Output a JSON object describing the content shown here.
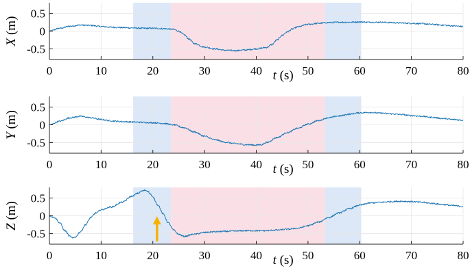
{
  "chart_data": [
    {
      "type": "line",
      "axis_variable": "X",
      "axis_unit": "(m)",
      "xlabel_var": "t",
      "xlabel_unit": "(s)",
      "xlim": [
        0,
        80
      ],
      "ylim": [
        -0.8,
        0.8
      ],
      "xticks": [
        0,
        10,
        20,
        30,
        40,
        50,
        60,
        70,
        80
      ],
      "yticks": [
        -0.5,
        0,
        0.5
      ],
      "ytick_labels": [
        "-0.5",
        "0",
        "0.5"
      ],
      "grid": true,
      "bands": [
        {
          "x0": 16.2,
          "x1": 23.5,
          "color": "#dce8f7"
        },
        {
          "x0": 23.5,
          "x1": 53.3,
          "color": "#fae0e6"
        },
        {
          "x0": 53.3,
          "x1": 60.3,
          "color": "#dce8f7"
        }
      ],
      "series": [
        {
          "color": "#1f77b4",
          "x": [
            0,
            2,
            4,
            6,
            8,
            10,
            12,
            14,
            16,
            18,
            20,
            22,
            24,
            25,
            26,
            27,
            28,
            30,
            32,
            34,
            36,
            38,
            40,
            42,
            43,
            44,
            45,
            46,
            47,
            48,
            50,
            52,
            54,
            56,
            58,
            60,
            62,
            64,
            66,
            68,
            70,
            72,
            74,
            76,
            78,
            80
          ],
          "y": [
            0.0,
            0.08,
            0.14,
            0.17,
            0.16,
            0.13,
            0.11,
            0.1,
            0.09,
            0.08,
            0.08,
            0.07,
            0.05,
            0.0,
            -0.1,
            -0.22,
            -0.35,
            -0.45,
            -0.5,
            -0.54,
            -0.55,
            -0.53,
            -0.5,
            -0.46,
            -0.38,
            -0.25,
            -0.12,
            -0.02,
            0.06,
            0.12,
            0.19,
            0.22,
            0.24,
            0.25,
            0.25,
            0.26,
            0.25,
            0.25,
            0.24,
            0.23,
            0.22,
            0.21,
            0.19,
            0.17,
            0.15,
            0.13
          ]
        }
      ]
    },
    {
      "type": "line",
      "axis_variable": "Y",
      "axis_unit": "(m)",
      "xlabel_var": "t",
      "xlabel_unit": "(s)",
      "xlim": [
        0,
        80
      ],
      "ylim": [
        -0.8,
        0.8
      ],
      "xticks": [
        0,
        10,
        20,
        30,
        40,
        50,
        60,
        70,
        80
      ],
      "yticks": [
        -0.5,
        0,
        0.5
      ],
      "ytick_labels": [
        "-0.5",
        "0",
        "0.5"
      ],
      "grid": true,
      "bands": [
        {
          "x0": 16.2,
          "x1": 23.5,
          "color": "#dce8f7"
        },
        {
          "x0": 23.5,
          "x1": 53.3,
          "color": "#fae0e6"
        },
        {
          "x0": 53.3,
          "x1": 60.3,
          "color": "#dce8f7"
        }
      ],
      "series": [
        {
          "color": "#1f77b4",
          "x": [
            0,
            2,
            4,
            6,
            8,
            10,
            12,
            14,
            16,
            18,
            20,
            22,
            24,
            26,
            28,
            30,
            32,
            34,
            36,
            38,
            40,
            41,
            42,
            44,
            46,
            48,
            50,
            52,
            54,
            56,
            58,
            60,
            62,
            64,
            66,
            68,
            70,
            72,
            74,
            76,
            78,
            80
          ],
          "y": [
            0.0,
            0.1,
            0.2,
            0.24,
            0.2,
            0.15,
            0.11,
            0.09,
            0.08,
            0.07,
            0.06,
            0.04,
            0.0,
            -0.08,
            -0.2,
            -0.32,
            -0.42,
            -0.49,
            -0.53,
            -0.56,
            -0.57,
            -0.56,
            -0.5,
            -0.36,
            -0.22,
            -0.1,
            0.02,
            0.12,
            0.2,
            0.25,
            0.3,
            0.34,
            0.35,
            0.33,
            0.31,
            0.29,
            0.26,
            0.24,
            0.21,
            0.18,
            0.15,
            0.13
          ]
        }
      ]
    },
    {
      "type": "line",
      "axis_variable": "Z",
      "axis_unit": "(m)",
      "xlabel_var": "t",
      "xlabel_unit": "(s)",
      "xlim": [
        0,
        80
      ],
      "ylim": [
        -0.8,
        0.8
      ],
      "xticks": [
        0,
        10,
        20,
        30,
        40,
        50,
        60,
        70,
        80
      ],
      "yticks": [
        -0.5,
        0,
        0.5
      ],
      "ytick_labels": [
        "-0.5",
        "0",
        "0.5"
      ],
      "grid": true,
      "bands": [
        {
          "x0": 16.2,
          "x1": 23.5,
          "color": "#dce8f7"
        },
        {
          "x0": 23.5,
          "x1": 53.3,
          "color": "#fae0e6"
        },
        {
          "x0": 53.3,
          "x1": 60.3,
          "color": "#dce8f7"
        }
      ],
      "annotation_arrow": {
        "x": 20.8,
        "y_tail": -0.72,
        "y_head": -0.05,
        "color": "#f5b301"
      },
      "series": [
        {
          "color": "#1f77b4",
          "x": [
            0,
            1,
            2,
            3,
            4,
            4.5,
            5,
            6,
            7,
            8,
            9,
            10,
            12,
            14,
            16,
            17,
            18,
            18.5,
            19,
            19.5,
            20,
            21,
            22,
            23,
            24,
            25,
            26,
            28,
            30,
            32,
            34,
            36,
            38,
            40,
            42,
            44,
            46,
            48,
            50,
            52,
            54,
            56,
            58,
            60,
            62,
            64,
            66,
            68,
            70,
            72,
            74,
            76,
            78,
            80
          ],
          "y": [
            0.0,
            -0.05,
            -0.2,
            -0.42,
            -0.58,
            -0.63,
            -0.6,
            -0.45,
            -0.25,
            -0.05,
            0.08,
            0.17,
            0.25,
            0.38,
            0.55,
            0.63,
            0.7,
            0.72,
            0.7,
            0.62,
            0.52,
            0.3,
            0.05,
            -0.2,
            -0.4,
            -0.52,
            -0.58,
            -0.52,
            -0.47,
            -0.45,
            -0.44,
            -0.43,
            -0.42,
            -0.42,
            -0.42,
            -0.4,
            -0.38,
            -0.35,
            -0.28,
            -0.18,
            -0.05,
            0.08,
            0.2,
            0.3,
            0.36,
            0.38,
            0.4,
            0.41,
            0.4,
            0.38,
            0.35,
            0.32,
            0.29,
            0.26
          ]
        }
      ]
    }
  ]
}
